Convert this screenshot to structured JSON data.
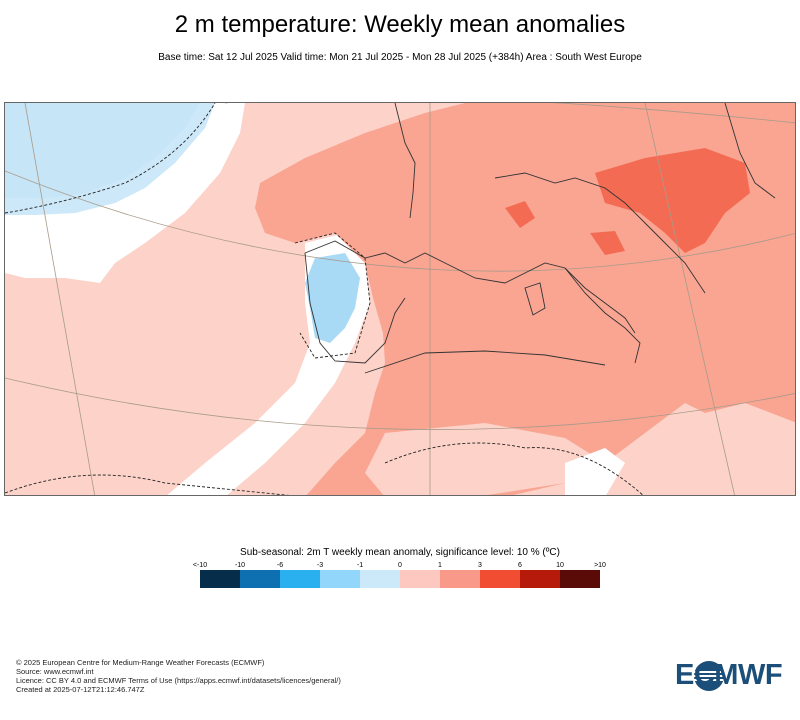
{
  "header": {
    "title": "2 m temperature: Weekly mean anomalies",
    "subtitle": "Base time: Sat 12 Jul 2025 Valid time: Mon 21 Jul 2025 - Mon 28 Jul 2025 (+384h) Area : South West Europe"
  },
  "map": {
    "area": "South West Europe",
    "colors": {
      "strong_warm": "#f46b53",
      "warm": "#f9a592",
      "light_warm": "#fcd2c9",
      "neutral": "#ffffff",
      "light_cold": "#cde8f8",
      "cold": "#a8d9f5",
      "coastline": "#333333",
      "graticule": "#a89a8a"
    }
  },
  "legend": {
    "title": "Sub-seasonal: 2m T weekly mean anomaly, significance level: 10 % (ºC)",
    "ticks": [
      "<-10",
      "-10",
      "-6",
      "-3",
      "-1",
      "0",
      "1",
      "3",
      "6",
      "10",
      ">10"
    ],
    "colors": [
      "#062d4a",
      "#0e70b0",
      "#2ab0ef",
      "#93d6fb",
      "#cce9f9",
      "#ffffff",
      "#fcc8c0",
      "#f8998a",
      "#f04d33",
      "#b51a0a",
      "#5b0b07"
    ]
  },
  "footer": {
    "lines": [
      "© 2025 European Centre for Medium-Range Weather Forecasts (ECMWF)",
      "Source: www.ecmwf.int",
      "Licence: CC BY 4.0 and ECMWF Terms of Use (https://apps.ecmwf.int/datasets/licences/general/)",
      "Created at 2025-07-12T21:12:46.747Z"
    ]
  },
  "logo": {
    "text": "ECMWF",
    "color": "#1c4e7a"
  }
}
